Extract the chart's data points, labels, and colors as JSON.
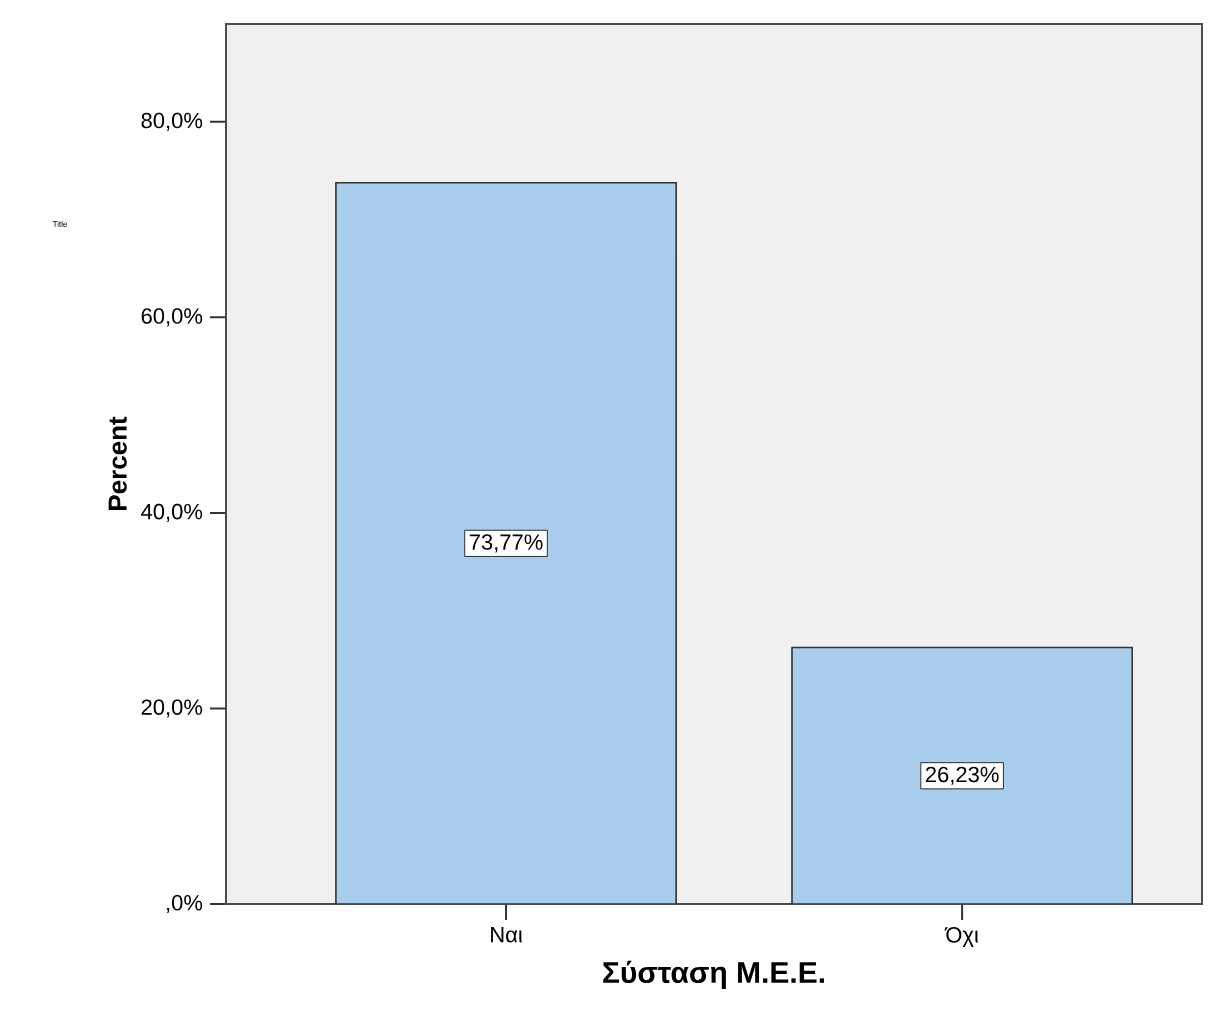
{
  "chart_data": {
    "type": "bar",
    "xlabel": "Σύσταση Μ.Ε.Ε.",
    "ylabel": "Percent",
    "categories": [
      "Ναι",
      "Όχι"
    ],
    "values": [
      73.77,
      26.23
    ],
    "color": "#a9cdec",
    "value_labels": [
      "73,77%",
      "26,23%"
    ],
    "ylim": [
      0,
      90
    ],
    "yticks": [
      {
        "value": 0,
        "label": ",0%"
      },
      {
        "value": 20,
        "label": "20,0%"
      },
      {
        "value": 40,
        "label": "40,0%"
      },
      {
        "value": 60,
        "label": "60,0%"
      },
      {
        "value": 80,
        "label": "80,0%"
      }
    ],
    "annotations": [
      "Title"
    ]
  }
}
